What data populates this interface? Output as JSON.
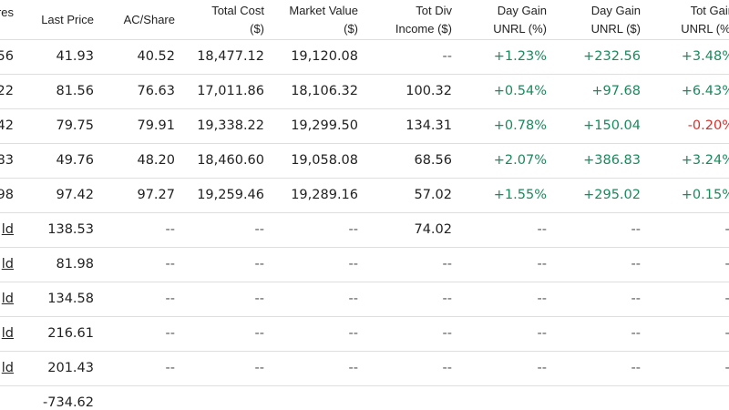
{
  "headers": {
    "shares": [
      "res"
    ],
    "last_price": [
      "Last Price"
    ],
    "ac_share": [
      "AC/Share"
    ],
    "total_cost": [
      "Total Cost",
      "($)"
    ],
    "market_value": [
      "Market Value",
      "($)"
    ],
    "tot_div_income": [
      "Tot Div",
      "Income ($)"
    ],
    "day_gain_pct": [
      "Day Gain",
      "UNRL (%)"
    ],
    "day_gain_usd": [
      "Day Gain",
      "UNRL ($)"
    ],
    "tot_gain_pct": [
      "Tot Gain",
      "UNRL (%)"
    ]
  },
  "rows": [
    {
      "shares": "56",
      "last_price": "41.93",
      "ac_share": "40.52",
      "total_cost": "18,477.12",
      "market_value": "19,120.08",
      "tot_div": "--",
      "day_gain_pct": "+1.23%",
      "day_gain_usd": "+232.56",
      "tot_gain_pct": "+3.48%",
      "tot_gain_sign": "pos"
    },
    {
      "shares": "22",
      "last_price": "81.56",
      "ac_share": "76.63",
      "total_cost": "17,011.86",
      "market_value": "18,106.32",
      "tot_div": "100.32",
      "day_gain_pct": "+0.54%",
      "day_gain_usd": "+97.68",
      "tot_gain_pct": "+6.43%",
      "tot_gain_sign": "pos"
    },
    {
      "shares": "42",
      "last_price": "79.75",
      "ac_share": "79.91",
      "total_cost": "19,338.22",
      "market_value": "19,299.50",
      "tot_div": "134.31",
      "day_gain_pct": "+0.78%",
      "day_gain_usd": "+150.04",
      "tot_gain_pct": "-0.20%",
      "tot_gain_sign": "neg"
    },
    {
      "shares": "83",
      "last_price": "49.76",
      "ac_share": "48.20",
      "total_cost": "18,460.60",
      "market_value": "19,058.08",
      "tot_div": "68.56",
      "day_gain_pct": "+2.07%",
      "day_gain_usd": "+386.83",
      "tot_gain_pct": "+3.24%",
      "tot_gain_sign": "pos"
    },
    {
      "shares": "98",
      "last_price": "97.42",
      "ac_share": "97.27",
      "total_cost": "19,259.46",
      "market_value": "19,289.16",
      "tot_div": "57.02",
      "day_gain_pct": "+1.55%",
      "day_gain_usd": "+295.02",
      "tot_gain_pct": "+0.15%",
      "tot_gain_sign": "pos"
    },
    {
      "shares": "ld",
      "last_price": "138.53",
      "ac_share": "--",
      "total_cost": "--",
      "market_value": "--",
      "tot_div": "74.02",
      "day_gain_pct": "--",
      "day_gain_usd": "--",
      "tot_gain_pct": "--",
      "tot_gain_sign": "dash"
    },
    {
      "shares": "ld",
      "last_price": "81.98",
      "ac_share": "--",
      "total_cost": "--",
      "market_value": "--",
      "tot_div": "--",
      "day_gain_pct": "--",
      "day_gain_usd": "--",
      "tot_gain_pct": "--",
      "tot_gain_sign": "dash"
    },
    {
      "shares": "ld",
      "last_price": "134.58",
      "ac_share": "--",
      "total_cost": "--",
      "market_value": "--",
      "tot_div": "--",
      "day_gain_pct": "--",
      "day_gain_usd": "--",
      "tot_gain_pct": "--",
      "tot_gain_sign": "dash"
    },
    {
      "shares": "ld",
      "last_price": "216.61",
      "ac_share": "--",
      "total_cost": "--",
      "market_value": "--",
      "tot_div": "--",
      "day_gain_pct": "--",
      "day_gain_usd": "--",
      "tot_gain_pct": "--",
      "tot_gain_sign": "dash"
    },
    {
      "shares": "ld",
      "last_price": "201.43",
      "ac_share": "--",
      "total_cost": "--",
      "market_value": "--",
      "tot_div": "--",
      "day_gain_pct": "--",
      "day_gain_usd": "--",
      "tot_gain_pct": "--",
      "tot_gain_sign": "dash"
    }
  ],
  "footer": {
    "last_price": "-734.62"
  },
  "colors": {
    "positive": "#1a8a5c",
    "negative": "#d9302c"
  }
}
